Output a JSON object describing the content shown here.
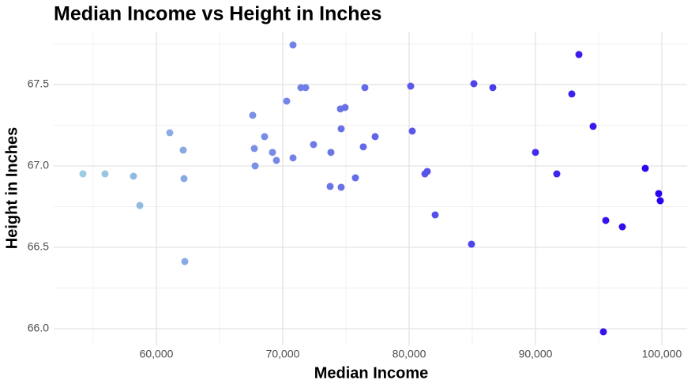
{
  "chart_data": {
    "type": "scatter",
    "title": "Median Income vs Height in Inches",
    "x_label": "Median Income",
    "y_label": "Height in Inches",
    "xlim": [
      51875,
      102000
    ],
    "ylim": [
      65.898,
      67.825
    ],
    "xticks": [
      {
        "value": 60000,
        "label": "60,000"
      },
      {
        "value": 70000,
        "label": "70,000"
      },
      {
        "value": 80000,
        "label": "80,000"
      },
      {
        "value": 90000,
        "label": "90,000"
      },
      {
        "value": 100000,
        "label": "100,000"
      }
    ],
    "yticks": [
      {
        "value": 66,
        "label": "66.0"
      },
      66.5,
      {
        "value": 67,
        "label": "67.0"
      },
      67.5
    ],
    "grid": true,
    "color_gradient": [
      "#9ccde0",
      "#2a00f0"
    ],
    "series": [
      {
        "x": [
          54188,
          55938,
          58188,
          58688,
          61063,
          62125,
          62188,
          62250,
          67625,
          67750,
          67813,
          68563,
          69188,
          69500,
          70313,
          70813,
          70813,
          71438,
          71813,
          72438,
          73750,
          73813,
          74563,
          74625,
          74625,
          74938,
          75750,
          76375,
          76500,
          77313,
          80125,
          80250,
          81250,
          81438,
          82063,
          84938,
          85125,
          86625,
          90000,
          91688,
          92875,
          93438,
          94563,
          95375,
          95563,
          96875,
          98688,
          99750,
          99875
        ],
        "values": [
          66.951,
          66.951,
          66.937,
          66.757,
          67.204,
          67.097,
          66.922,
          66.413,
          67.311,
          67.107,
          67.0,
          67.18,
          67.083,
          67.034,
          67.398,
          67.743,
          67.049,
          67.481,
          67.481,
          67.131,
          66.874,
          67.083,
          67.35,
          67.228,
          66.869,
          67.359,
          66.927,
          67.117,
          67.481,
          67.18,
          67.49,
          67.214,
          66.951,
          66.966,
          66.699,
          66.519,
          67.505,
          67.481,
          67.083,
          66.951,
          67.442,
          67.684,
          67.243,
          65.981,
          66.665,
          66.626,
          66.985,
          66.83,
          66.786
        ]
      }
    ]
  }
}
